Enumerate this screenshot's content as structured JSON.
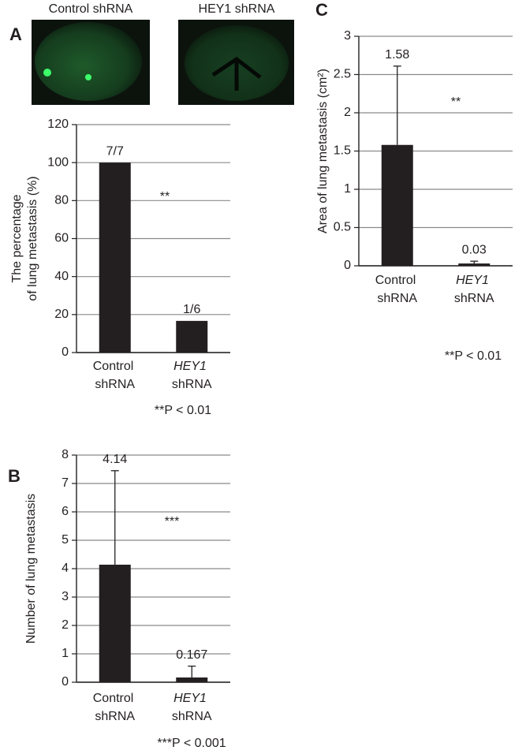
{
  "chart_data": [
    {
      "type": "bar",
      "panel_label": "A",
      "image_labels": [
        "Control shRNA",
        "HEY1 shRNA"
      ],
      "ylabel": [
        "The percentage",
        "of lung metastasis (%)"
      ],
      "categories": [
        "Control shRNA",
        "HEY1 shRNA"
      ],
      "values": [
        100,
        16.67
      ],
      "value_labels": [
        "7/7",
        "1/6"
      ],
      "color": "#231f20",
      "ylim": [
        0,
        120
      ],
      "yticks": [
        0,
        20,
        40,
        60,
        80,
        100,
        120
      ],
      "grid": true,
      "annotation": "**",
      "footnote": "**P < 0.01"
    },
    {
      "type": "bar",
      "panel_label": "B",
      "ylabel": "Number of lung metastasis",
      "categories": [
        "Control shRNA",
        "HEY1 shRNA"
      ],
      "values": [
        4.14,
        0.167
      ],
      "errors": [
        3.31,
        0.4
      ],
      "color": "#231f20",
      "ylim": [
        0,
        8
      ],
      "yticks": [
        0,
        1,
        2,
        3,
        4,
        5,
        6,
        7,
        8
      ],
      "grid": true,
      "annotation": "***",
      "footnote": "***P < 0.001"
    },
    {
      "type": "bar",
      "panel_label": "C",
      "ylabel": "Area of lung metastasis (cm²)",
      "categories": [
        "Control shRNA",
        "HEY1 shRNA"
      ],
      "values": [
        1.58,
        0.03
      ],
      "errors": [
        1.03,
        0.03
      ],
      "color": "#231f20",
      "ylim": [
        0,
        3
      ],
      "yticks": [
        0,
        0.5,
        1,
        1.5,
        2,
        2.5,
        3
      ],
      "grid": true,
      "annotation": "**",
      "footnote": "**P < 0.01"
    }
  ]
}
